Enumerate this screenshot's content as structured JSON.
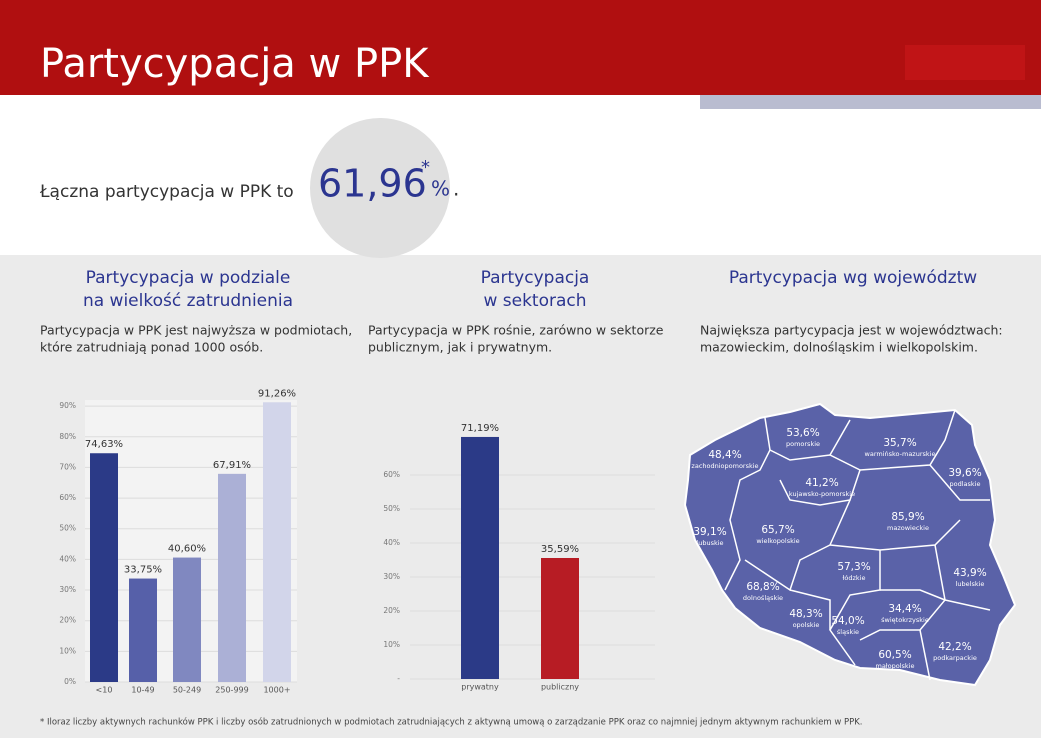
{
  "header": {
    "title": "Partycypacja w PPK"
  },
  "summary": {
    "lead": "Łączna partycypacja w PPK to",
    "value": "61,96",
    "asterisk": "*",
    "unit": "%",
    "end": "."
  },
  "sections": [
    {
      "title_lines": [
        "Partycypacja w podziale",
        "na wielkość zatrudnienia"
      ],
      "text_lines": [
        "Partycypacja w PPK jest najwyższa w podmiotach,",
        "które zatrudniają ponad 1000 osób."
      ]
    },
    {
      "title_lines": [
        "Partycypacja",
        "w sektorach"
      ],
      "text_lines": [
        "Partycypacja w PPK rośnie, zarówno w sektorze",
        "publicznym, jak i prywatnym."
      ]
    },
    {
      "title_lines": [
        "Partycypacja wg województw"
      ],
      "text_lines": [
        "Największa partycypacja jest w województwach:",
        "mazowieckim, dolnośląskim i wielkopolskim."
      ]
    }
  ],
  "chart_data": [
    {
      "type": "bar",
      "categories": [
        "<10",
        "10-49",
        "50-249",
        "250-999",
        "1000+"
      ],
      "values": [
        74.63,
        33.75,
        40.6,
        67.91,
        91.26
      ],
      "value_labels": [
        "74,63%",
        "33,75%",
        "40,60%",
        "67,91%",
        "91,26%"
      ],
      "colors": [
        "#2b3a87",
        "#5660a9",
        "#8088c0",
        "#abb0d6",
        "#d2d5ea"
      ],
      "ylim": [
        0,
        92
      ],
      "yticks": [
        {
          "value": 0,
          "label": "0%"
        },
        {
          "value": 10,
          "label": "10%"
        },
        {
          "value": 20,
          "label": "20%"
        },
        {
          "value": 30,
          "label": "30%"
        },
        {
          "value": 40,
          "label": "40%"
        },
        {
          "value": 50,
          "label": "50%"
        },
        {
          "value": 60,
          "label": "60%"
        },
        {
          "value": 70,
          "label": "70%"
        },
        {
          "value": 80,
          "label": "80%"
        },
        {
          "value": 90,
          "label": "90%"
        }
      ]
    },
    {
      "type": "bar",
      "categories": [
        "prywatny",
        "publiczny"
      ],
      "values": [
        71.19,
        35.59
      ],
      "value_labels": [
        "71,19%",
        "35,59%"
      ],
      "colors": [
        "#2b3a87",
        "#b71c24"
      ],
      "ylim": [
        0,
        75
      ],
      "yticks": [
        {
          "value": 0,
          "label": "-"
        },
        {
          "value": 10,
          "label": "10%"
        },
        {
          "value": 20,
          "label": "20%"
        },
        {
          "value": 30,
          "label": "30%"
        },
        {
          "value": 40,
          "label": "40%"
        },
        {
          "value": 50,
          "label": "50%"
        },
        {
          "value": 60,
          "label": "60%"
        }
      ]
    }
  ],
  "map": {
    "regions": [
      {
        "value": "48,4%",
        "name": "zachodniopomorskie"
      },
      {
        "value": "53,6%",
        "name": "pomorskie"
      },
      {
        "value": "35,7%",
        "name": "warmińsko-mazurskie"
      },
      {
        "value": "39,6%",
        "name": "podlaskie"
      },
      {
        "value": "41,2%",
        "name": "kujawsko-pomorskie"
      },
      {
        "value": "65,7%",
        "name": "wielkopolskie"
      },
      {
        "value": "39,1%",
        "name": "lubuskie"
      },
      {
        "value": "85,9%",
        "name": "mazowieckie"
      },
      {
        "value": "57,3%",
        "name": "łódzkie"
      },
      {
        "value": "43,9%",
        "name": "lubelskie"
      },
      {
        "value": "68,8%",
        "name": "dolnośląskie"
      },
      {
        "value": "48,3%",
        "name": "opolskie"
      },
      {
        "value": "54,0%",
        "name": "śląskie"
      },
      {
        "value": "34,4%",
        "name": "świętokrzyskie"
      },
      {
        "value": "60,5%",
        "name": "małopolskie"
      },
      {
        "value": "42,2%",
        "name": "podkarpackie"
      }
    ]
  },
  "footnote": "* Iloraz liczby aktywnych rachunków PPK i liczby osób zatrudnionych w podmiotach zatrudniających z aktywną umową o zarządzanie PPK oraz co najmniej jednym aktywnym rachunkiem w PPK."
}
